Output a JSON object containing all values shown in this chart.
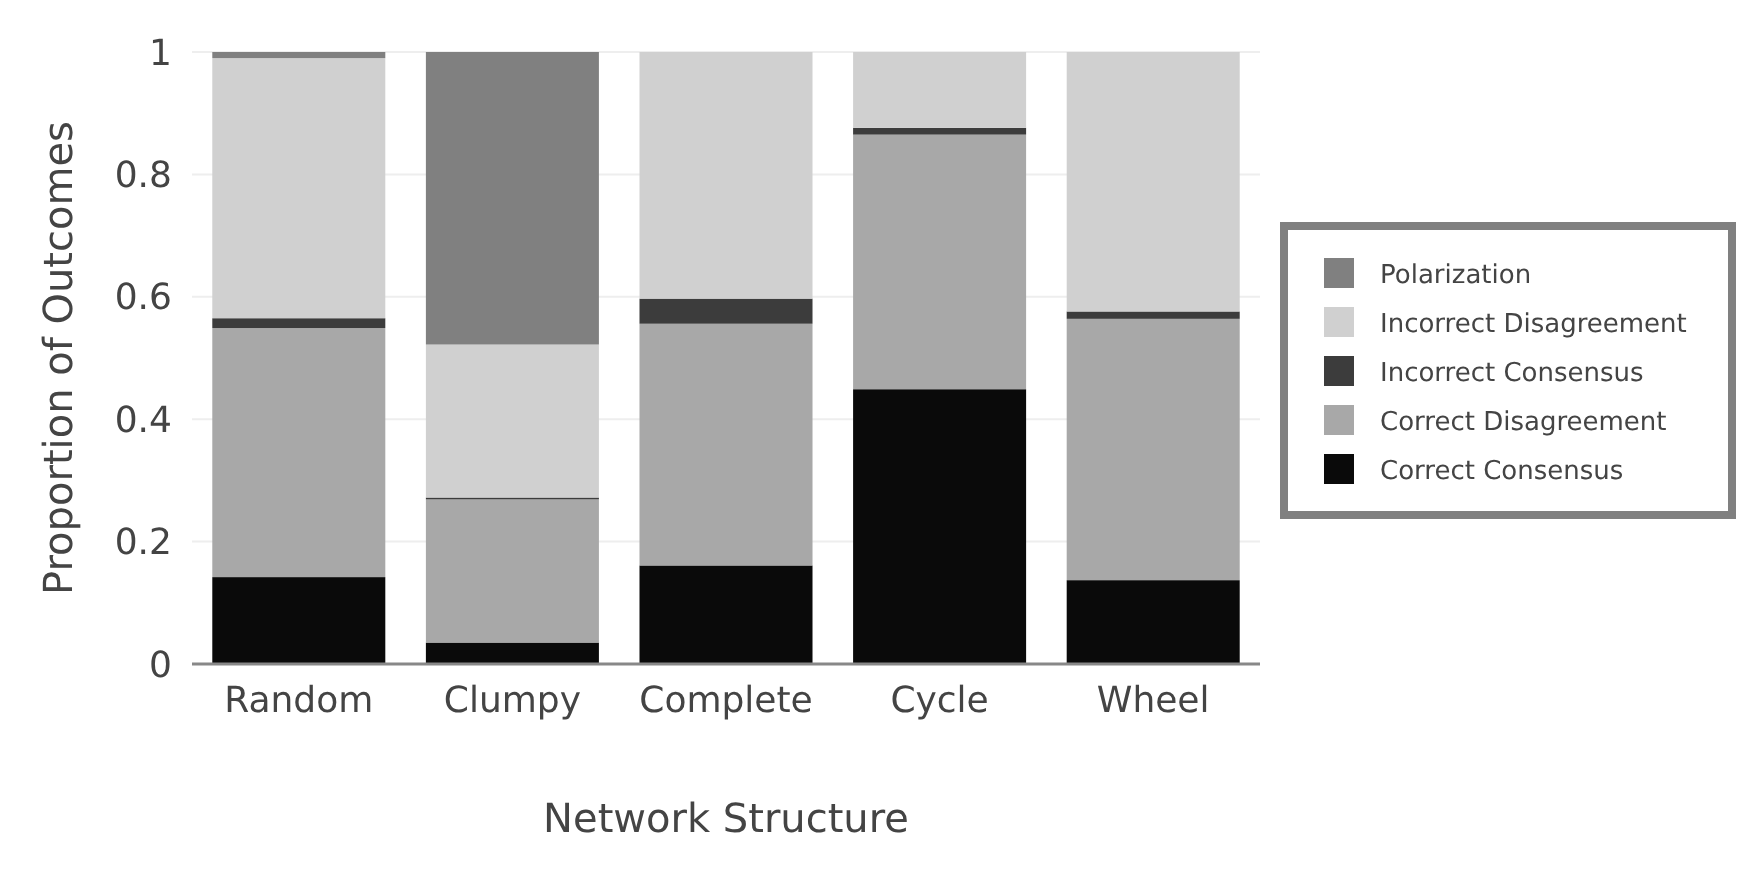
{
  "chart_data": {
    "type": "bar",
    "stacked": true,
    "xlabel": "Network Structure",
    "ylabel": "Proportion of Outcomes",
    "categories": [
      "Random",
      "Clumpy",
      "Complete",
      "Cycle",
      "Wheel"
    ],
    "series": [
      {
        "name": "Correct Consensus",
        "color": "#0a0a0a",
        "values": [
          0.142,
          0.035,
          0.161,
          0.449,
          0.137
        ]
      },
      {
        "name": "Correct Disagreement",
        "color": "#a8a8a8",
        "values": [
          0.407,
          0.234,
          0.395,
          0.416,
          0.427
        ]
      },
      {
        "name": "Incorrect Consensus",
        "color": "#3c3c3c",
        "values": [
          0.016,
          0.003,
          0.041,
          0.011,
          0.012
        ]
      },
      {
        "name": "Incorrect Disagreement",
        "color": "#d0d0d0",
        "values": [
          0.425,
          0.25,
          0.403,
          0.124,
          0.424
        ]
      },
      {
        "name": "Polarization",
        "color": "#808080",
        "values": [
          0.01,
          0.478,
          0,
          0,
          0
        ]
      }
    ],
    "ylim": [
      0,
      1
    ],
    "yticks": [
      0,
      0.2,
      0.4,
      0.6,
      0.8,
      1
    ],
    "grid": "y",
    "legend": "right"
  }
}
